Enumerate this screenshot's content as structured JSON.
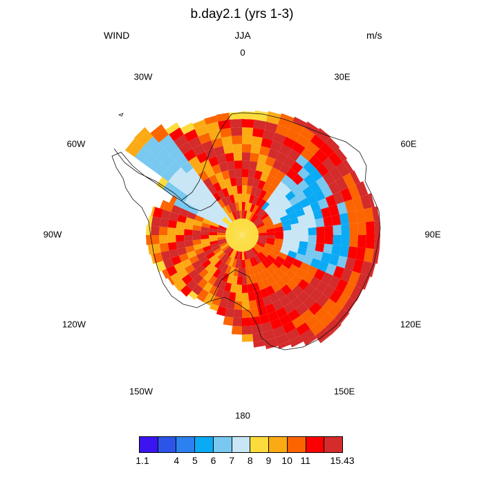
{
  "header": {
    "title": "b.day2.1 (yrs 1-3)",
    "variable": "WIND",
    "season": "JJA",
    "units": "m/s"
  },
  "map": {
    "projection": "south-polar-stereographic",
    "longitude_labels": [
      "0",
      "30E",
      "60E",
      "90E",
      "120E",
      "150E",
      "180",
      "150W",
      "120W",
      "90W",
      "60W",
      "30W"
    ],
    "field": "WIND",
    "description_colors": {
      "interior_dominant": "#d42b2b",
      "coastal": "#fcd43c"
    }
  },
  "colorbar": {
    "colors": [
      "#3c14f0",
      "#2c55e8",
      "#2c81f0",
      "#0aaaf5",
      "#78c8f0",
      "#c8e6f5",
      "#fcdc3c",
      "#fcaa14",
      "#fc6400",
      "#fc0000",
      "#d42b2b"
    ],
    "labels": [
      "1.1",
      "4",
      "5",
      "6",
      "7",
      "8",
      "9",
      "10",
      "11",
      "15.43"
    ]
  }
}
